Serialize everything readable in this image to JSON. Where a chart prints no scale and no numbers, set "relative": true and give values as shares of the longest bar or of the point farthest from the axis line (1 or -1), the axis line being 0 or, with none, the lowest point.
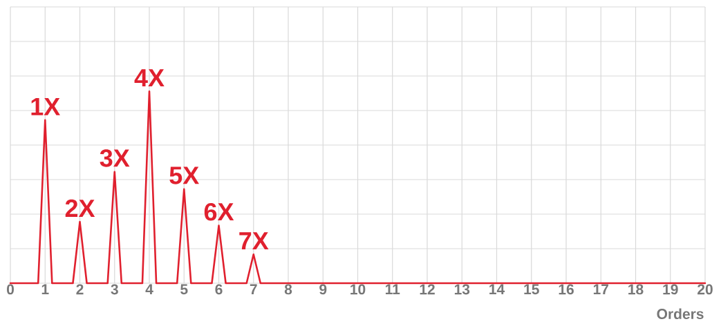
{
  "chart_data": {
    "type": "line",
    "relative": true,
    "xlabel": "Orders",
    "x": [
      0,
      0.8,
      1,
      1.2,
      1.8,
      2,
      2.2,
      2.8,
      3,
      3.2,
      3.8,
      4,
      4.2,
      4.8,
      5,
      5.2,
      5.8,
      6,
      6.2,
      6.8,
      7,
      7.2,
      20
    ],
    "values": [
      0,
      0,
      0.85,
      0,
      0,
      0.32,
      0,
      0,
      0.58,
      0,
      0,
      1,
      0,
      0,
      0.49,
      0,
      0,
      0.3,
      0,
      0,
      0.15,
      0,
      0
    ],
    "color": "#e0202e",
    "xlim": [
      0,
      20
    ],
    "xticks": [
      0,
      1,
      2,
      3,
      4,
      5,
      6,
      7,
      8,
      9,
      10,
      11,
      12,
      13,
      14,
      15,
      16,
      17,
      18,
      19,
      20
    ],
    "grid": true,
    "marker": "none",
    "line_style": "solid",
    "annotations": [
      {
        "text": "1X",
        "x": 1,
        "y": 0.85
      },
      {
        "text": "2X",
        "x": 2,
        "y": 0.32
      },
      {
        "text": "3X",
        "x": 3,
        "y": 0.58
      },
      {
        "text": "4X",
        "x": 4,
        "y": 1
      },
      {
        "text": "5X",
        "x": 5,
        "y": 0.49
      },
      {
        "text": "6X",
        "x": 6,
        "y": 0.3
      },
      {
        "text": "7X",
        "x": 7,
        "y": 0.15
      }
    ]
  }
}
